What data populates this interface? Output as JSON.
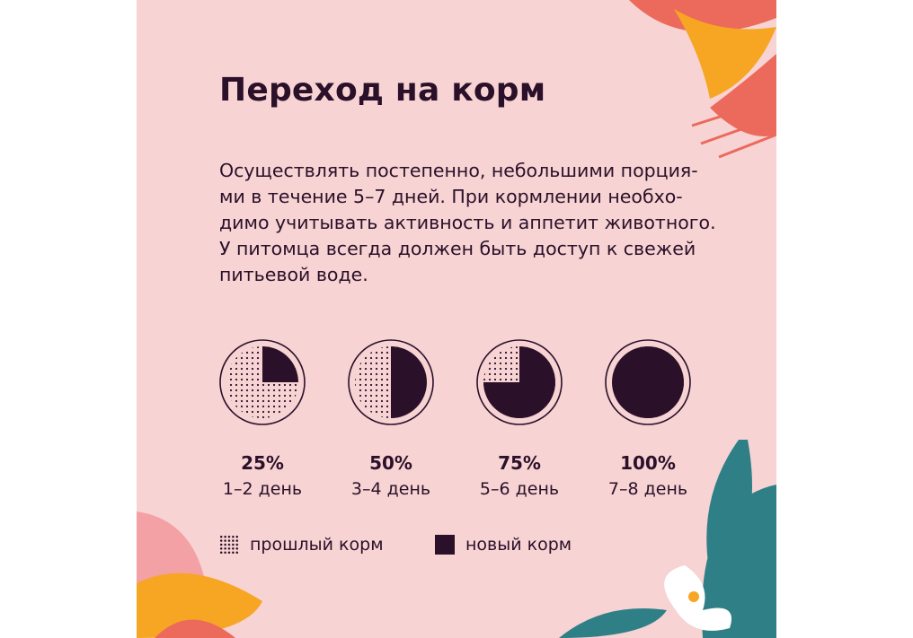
{
  "title": "Переход на корм",
  "body_lines": [
    "Осуществлять постепенно, небольшими порция-",
    "ми в течение 5–7 дней. При кормлении необхо-",
    "димо учитывать активность и аппетит животного.",
    "У питомца всегда должен быть доступ к свежей",
    "питьевой воде."
  ],
  "chart_data": {
    "type": "pie",
    "charts": [
      {
        "label": "25%",
        "days": "1–2 день",
        "new_fraction": 0.25
      },
      {
        "label": "50%",
        "days": "3–4 день",
        "new_fraction": 0.5
      },
      {
        "label": "75%",
        "days": "5–6 день",
        "new_fraction": 0.75
      },
      {
        "label": "100%",
        "days": "7–8 день",
        "new_fraction": 1.0
      }
    ],
    "legend": [
      {
        "name": "прошлый корм",
        "pattern": "dotted"
      },
      {
        "name": "новый корм",
        "pattern": "solid"
      }
    ],
    "colors": {
      "ink": "#2b1029",
      "background": "#f7d3d3"
    }
  },
  "decoration": {
    "leaf_colors": [
      "#ec6a5c",
      "#f6a623",
      "#2f7f87",
      "#f4a1a6",
      "#ffffff"
    ]
  }
}
